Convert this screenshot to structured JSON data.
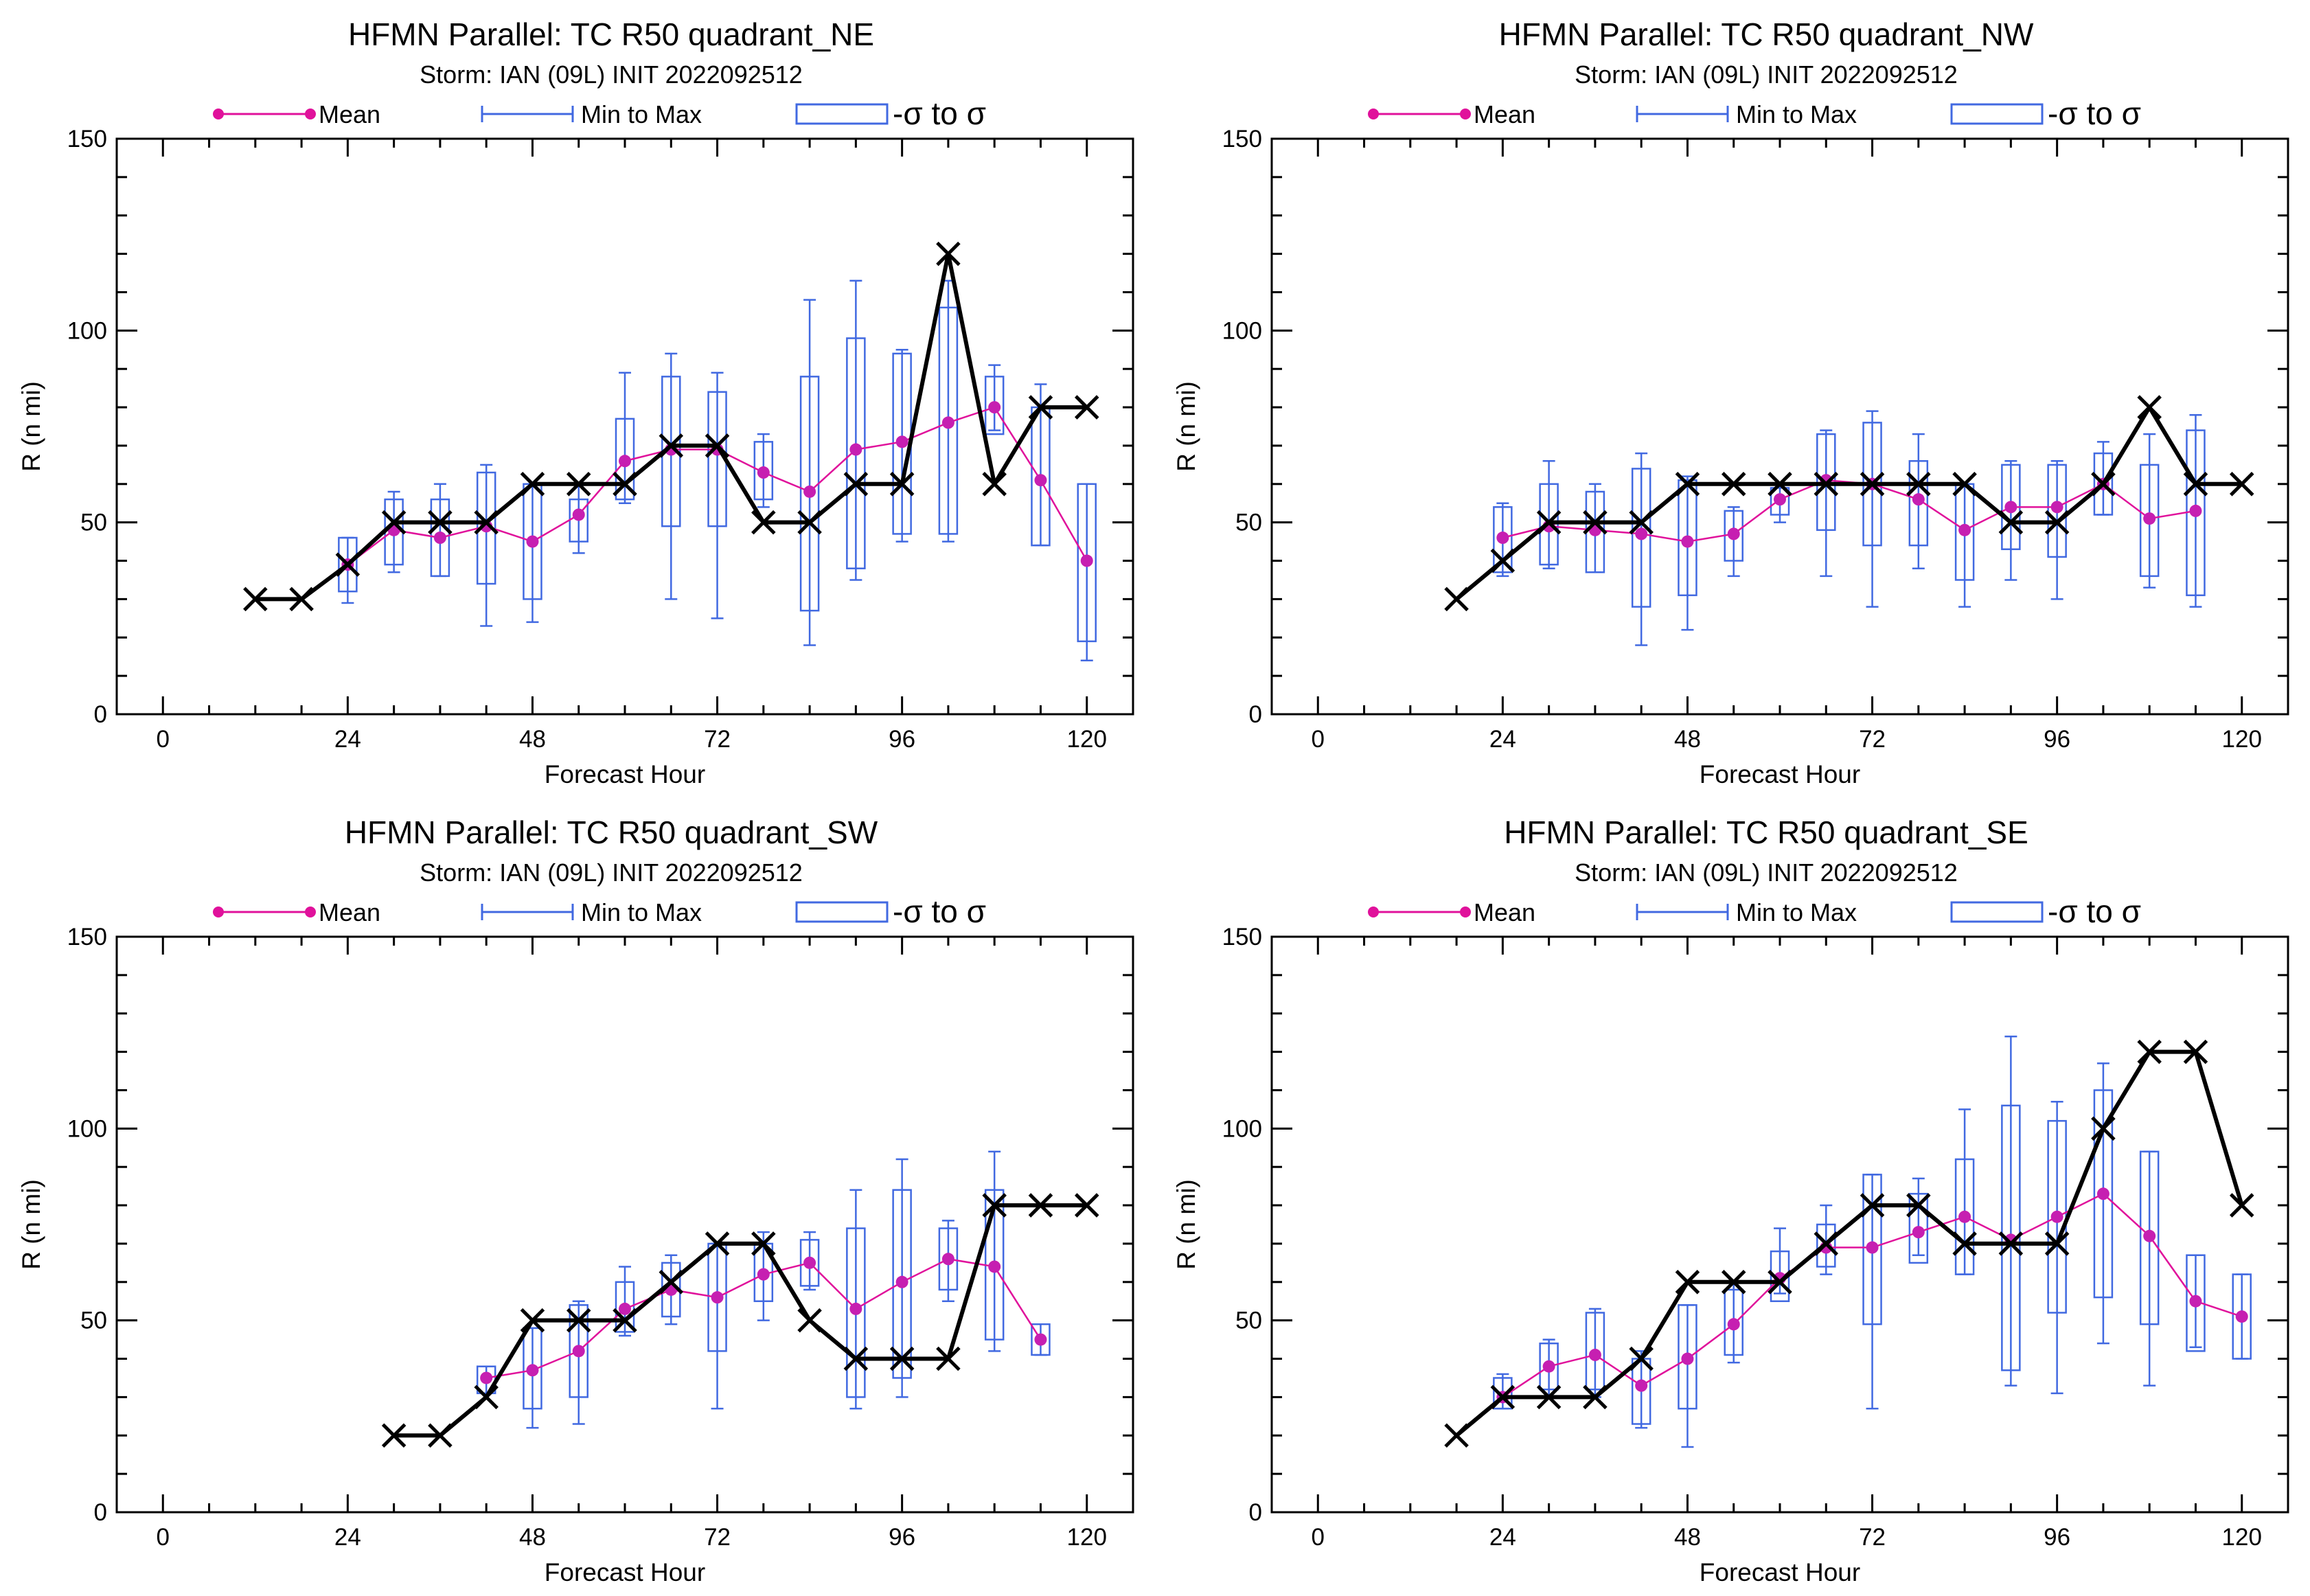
{
  "legend": {
    "mean": "Mean",
    "minmax": "Min to Max",
    "sigma": "-σ to σ"
  },
  "colors": {
    "mean": "#e0119b",
    "mean_marker": "#c61fb1",
    "box": "#4169e1",
    "obs": "#000000"
  },
  "panels": [
    {
      "title": "HFMN Parallel: TC  R50 quadrant_NE",
      "subtitle": "Storm: IAN (09L) INIT 2022092512",
      "chart_data": {
        "type": "line",
        "xlabel": "Forecast Hour",
        "ylabel": "R (n mi)",
        "xlim": [
          -6,
          126
        ],
        "ylim": [
          0,
          150
        ],
        "xticks": [
          "0",
          "24",
          "48",
          "72",
          "96",
          "120"
        ],
        "yticks": [
          "0",
          "50",
          "100",
          "150"
        ],
        "observed": {
          "x": [
            12,
            18,
            24,
            30,
            36,
            42,
            48,
            54,
            60,
            66,
            72,
            78,
            84,
            90,
            96,
            102,
            108,
            114,
            120
          ],
          "y": [
            30,
            30,
            39,
            50,
            50,
            50,
            60,
            60,
            60,
            70,
            70,
            50,
            50,
            60,
            60,
            120,
            60,
            80,
            80
          ]
        },
        "mean": {
          "x": [
            24,
            30,
            36,
            42,
            48,
            54,
            60,
            66,
            72,
            78,
            84,
            90,
            96,
            102,
            108,
            114,
            120
          ],
          "y": [
            39,
            48,
            46,
            49,
            45,
            52,
            66,
            69,
            69,
            63,
            58,
            69,
            71,
            76,
            80,
            61,
            40
          ]
        },
        "boxes": [
          {
            "x": 24,
            "min": 29,
            "max": 46,
            "lo": 32,
            "hi": 46
          },
          {
            "x": 30,
            "min": 37,
            "max": 58,
            "lo": 39,
            "hi": 56
          },
          {
            "x": 36,
            "min": 36,
            "max": 60,
            "lo": 36,
            "hi": 56
          },
          {
            "x": 42,
            "min": 23,
            "max": 65,
            "lo": 34,
            "hi": 63
          },
          {
            "x": 48,
            "min": 24,
            "max": 60,
            "lo": 30,
            "hi": 60
          },
          {
            "x": 54,
            "min": 42,
            "max": 60,
            "lo": 45,
            "hi": 56
          },
          {
            "x": 60,
            "min": 55,
            "max": 89,
            "lo": 56,
            "hi": 77
          },
          {
            "x": 66,
            "min": 30,
            "max": 94,
            "lo": 49,
            "hi": 88
          },
          {
            "x": 72,
            "min": 25,
            "max": 89,
            "lo": 49,
            "hi": 84
          },
          {
            "x": 78,
            "min": 54,
            "max": 73,
            "lo": 56,
            "hi": 71
          },
          {
            "x": 84,
            "min": 18,
            "max": 108,
            "lo": 27,
            "hi": 88
          },
          {
            "x": 90,
            "min": 35,
            "max": 113,
            "lo": 38,
            "hi": 98
          },
          {
            "x": 96,
            "min": 45,
            "max": 95,
            "lo": 47,
            "hi": 94
          },
          {
            "x": 102,
            "min": 45,
            "max": 113,
            "lo": 47,
            "hi": 106
          },
          {
            "x": 108,
            "min": 74,
            "max": 91,
            "lo": 73,
            "hi": 88
          },
          {
            "x": 114,
            "min": 44,
            "max": 86,
            "lo": 44,
            "hi": 80
          },
          {
            "x": 120,
            "min": 14,
            "max": 60,
            "lo": 19,
            "hi": 60
          }
        ]
      }
    },
    {
      "title": "HFMN Parallel: TC  R50 quadrant_NW",
      "subtitle": "Storm: IAN (09L) INIT 2022092512",
      "chart_data": {
        "type": "line",
        "xlabel": "Forecast Hour",
        "ylabel": "R (n mi)",
        "xlim": [
          -6,
          126
        ],
        "ylim": [
          0,
          150
        ],
        "xticks": [
          "0",
          "24",
          "48",
          "72",
          "96",
          "120"
        ],
        "yticks": [
          "0",
          "50",
          "100",
          "150"
        ],
        "observed": {
          "x": [
            18,
            24,
            30,
            36,
            42,
            48,
            54,
            60,
            66,
            72,
            78,
            84,
            90,
            96,
            102,
            108,
            114,
            120
          ],
          "y": [
            30,
            40,
            50,
            50,
            50,
            60,
            60,
            60,
            60,
            60,
            60,
            60,
            50,
            50,
            60,
            80,
            60,
            60
          ]
        },
        "mean": {
          "x": [
            24,
            30,
            36,
            42,
            48,
            54,
            60,
            66,
            72,
            78,
            84,
            90,
            96,
            102,
            108,
            114
          ],
          "y": [
            46,
            49,
            48,
            47,
            45,
            47,
            56,
            61,
            60,
            56,
            48,
            54,
            54,
            60,
            51,
            53
          ]
        },
        "boxes": [
          {
            "x": 24,
            "min": 36,
            "max": 55,
            "lo": 37,
            "hi": 54
          },
          {
            "x": 30,
            "min": 38,
            "max": 66,
            "lo": 39,
            "hi": 60
          },
          {
            "x": 36,
            "min": 37,
            "max": 60,
            "lo": 37,
            "hi": 58
          },
          {
            "x": 42,
            "min": 18,
            "max": 68,
            "lo": 28,
            "hi": 64
          },
          {
            "x": 48,
            "min": 22,
            "max": 62,
            "lo": 31,
            "hi": 61
          },
          {
            "x": 54,
            "min": 36,
            "max": 54,
            "lo": 40,
            "hi": 53
          },
          {
            "x": 60,
            "min": 50,
            "max": 60,
            "lo": 52,
            "hi": 59
          },
          {
            "x": 66,
            "min": 36,
            "max": 74,
            "lo": 48,
            "hi": 73
          },
          {
            "x": 72,
            "min": 28,
            "max": 79,
            "lo": 44,
            "hi": 76
          },
          {
            "x": 78,
            "min": 38,
            "max": 73,
            "lo": 44,
            "hi": 66
          },
          {
            "x": 84,
            "min": 28,
            "max": 60,
            "lo": 35,
            "hi": 60
          },
          {
            "x": 90,
            "min": 35,
            "max": 66,
            "lo": 43,
            "hi": 65
          },
          {
            "x": 96,
            "min": 30,
            "max": 66,
            "lo": 41,
            "hi": 65
          },
          {
            "x": 102,
            "min": 52,
            "max": 71,
            "lo": 52,
            "hi": 68
          },
          {
            "x": 108,
            "min": 33,
            "max": 73,
            "lo": 36,
            "hi": 65
          },
          {
            "x": 114,
            "min": 28,
            "max": 78,
            "lo": 31,
            "hi": 74
          }
        ]
      }
    },
    {
      "title": "HFMN Parallel: TC  R50 quadrant_SW",
      "subtitle": "Storm: IAN (09L) INIT 2022092512",
      "chart_data": {
        "type": "line",
        "xlabel": "Forecast Hour",
        "ylabel": "R (n mi)",
        "xlim": [
          -6,
          126
        ],
        "ylim": [
          0,
          150
        ],
        "xticks": [
          "0",
          "24",
          "48",
          "72",
          "96",
          "120"
        ],
        "yticks": [
          "0",
          "50",
          "100",
          "150"
        ],
        "observed": {
          "x": [
            30,
            36,
            42,
            48,
            54,
            60,
            66,
            72,
            78,
            84,
            90,
            96,
            102,
            108,
            114,
            120
          ],
          "y": [
            20,
            20,
            30,
            50,
            50,
            50,
            60,
            70,
            70,
            50,
            40,
            40,
            40,
            80,
            80,
            80
          ]
        },
        "mean": {
          "x": [
            42,
            48,
            54,
            60,
            66,
            72,
            78,
            84,
            90,
            96,
            102,
            108,
            114
          ],
          "y": [
            35,
            37,
            42,
            53,
            58,
            56,
            62,
            65,
            53,
            60,
            66,
            64,
            45
          ]
        },
        "boxes": [
          {
            "x": 42,
            "min": 31,
            "max": 38,
            "lo": 31,
            "hi": 38
          },
          {
            "x": 48,
            "min": 22,
            "max": 48,
            "lo": 27,
            "hi": 48
          },
          {
            "x": 54,
            "min": 23,
            "max": 55,
            "lo": 30,
            "hi": 54
          },
          {
            "x": 60,
            "min": 46,
            "max": 64,
            "lo": 47,
            "hi": 60
          },
          {
            "x": 66,
            "min": 49,
            "max": 67,
            "lo": 51,
            "hi": 65
          },
          {
            "x": 72,
            "min": 27,
            "max": 70,
            "lo": 42,
            "hi": 70
          },
          {
            "x": 78,
            "min": 50,
            "max": 73,
            "lo": 55,
            "hi": 70
          },
          {
            "x": 84,
            "min": 58,
            "max": 73,
            "lo": 59,
            "hi": 71
          },
          {
            "x": 90,
            "min": 27,
            "max": 84,
            "lo": 30,
            "hi": 74
          },
          {
            "x": 96,
            "min": 30,
            "max": 92,
            "lo": 35,
            "hi": 84
          },
          {
            "x": 102,
            "min": 55,
            "max": 76,
            "lo": 58,
            "hi": 74
          },
          {
            "x": 108,
            "min": 42,
            "max": 94,
            "lo": 45,
            "hi": 84
          },
          {
            "x": 114,
            "min": 41,
            "max": 49,
            "lo": 41,
            "hi": 49
          }
        ]
      }
    },
    {
      "title": "HFMN Parallel: TC  R50 quadrant_SE",
      "subtitle": "Storm: IAN (09L) INIT 2022092512",
      "chart_data": {
        "type": "line",
        "xlabel": "Forecast Hour",
        "ylabel": "R (n mi)",
        "xlim": [
          -6,
          126
        ],
        "ylim": [
          0,
          150
        ],
        "xticks": [
          "0",
          "24",
          "48",
          "72",
          "96",
          "120"
        ],
        "yticks": [
          "0",
          "50",
          "100",
          "150"
        ],
        "observed": {
          "x": [
            18,
            24,
            30,
            36,
            42,
            48,
            54,
            60,
            66,
            72,
            78,
            84,
            90,
            96,
            102,
            108,
            114,
            120
          ],
          "y": [
            20,
            30,
            30,
            30,
            40,
            60,
            60,
            60,
            70,
            80,
            80,
            70,
            70,
            70,
            100,
            120,
            120,
            80
          ]
        },
        "mean": {
          "x": [
            24,
            30,
            36,
            42,
            48,
            54,
            60,
            66,
            72,
            78,
            84,
            90,
            96,
            102,
            108,
            114,
            120
          ],
          "y": [
            30,
            38,
            41,
            33,
            40,
            49,
            61,
            69,
            69,
            73,
            77,
            71,
            77,
            83,
            72,
            55,
            51
          ]
        },
        "boxes": [
          {
            "x": 24,
            "min": 27,
            "max": 36,
            "lo": 27,
            "hi": 35
          },
          {
            "x": 30,
            "min": 30,
            "max": 45,
            "lo": 32,
            "hi": 44
          },
          {
            "x": 36,
            "min": 30,
            "max": 53,
            "lo": 32,
            "hi": 52
          },
          {
            "x": 42,
            "min": 22,
            "max": 42,
            "lo": 23,
            "hi": 40
          },
          {
            "x": 48,
            "min": 17,
            "max": 54,
            "lo": 27,
            "hi": 54
          },
          {
            "x": 54,
            "min": 39,
            "max": 60,
            "lo": 41,
            "hi": 58
          },
          {
            "x": 60,
            "min": 57,
            "max": 74,
            "lo": 55,
            "hi": 68
          },
          {
            "x": 66,
            "min": 62,
            "max": 80,
            "lo": 64,
            "hi": 75
          },
          {
            "x": 72,
            "min": 27,
            "max": 88,
            "lo": 49,
            "hi": 88
          },
          {
            "x": 78,
            "min": 67,
            "max": 87,
            "lo": 65,
            "hi": 83
          },
          {
            "x": 84,
            "min": 62,
            "max": 105,
            "lo": 62,
            "hi": 92
          },
          {
            "x": 90,
            "min": 33,
            "max": 124,
            "lo": 37,
            "hi": 106
          },
          {
            "x": 96,
            "min": 31,
            "max": 107,
            "lo": 52,
            "hi": 102
          },
          {
            "x": 102,
            "min": 44,
            "max": 117,
            "lo": 56,
            "hi": 110
          },
          {
            "x": 108,
            "min": 33,
            "max": 94,
            "lo": 49,
            "hi": 94
          },
          {
            "x": 114,
            "min": 43,
            "max": 67,
            "lo": 42,
            "hi": 67
          },
          {
            "x": 120,
            "min": 40,
            "max": 62,
            "lo": 40,
            "hi": 62
          }
        ]
      }
    }
  ]
}
